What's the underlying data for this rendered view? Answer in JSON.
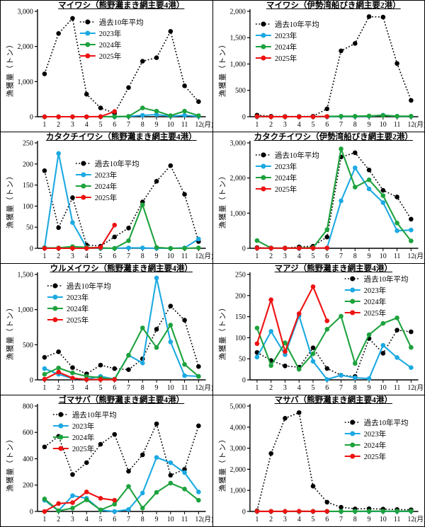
{
  "page": {
    "background": "#ffffff",
    "grid_border_color": "#000000"
  },
  "axis": {
    "ylabel": "漁獲量（トン）",
    "x_months": [
      1,
      2,
      3,
      4,
      5,
      6,
      7,
      8,
      9,
      10,
      11,
      12
    ],
    "x_suffix": "(月)"
  },
  "colors": {
    "avg": "#000000",
    "y2023": "#1CA9E2",
    "y2024": "#1DA23D",
    "y2025": "#EE1111"
  },
  "legend_labels": {
    "avg": "過去10年平均",
    "y2023": "2023年",
    "y2024": "2024年",
    "y2025": "2025年"
  },
  "chart_data": [
    {
      "type": "line",
      "title": "マイワシ（熊野灘まき網主要4港）",
      "ylim": [
        0,
        3000
      ],
      "ytick_values": [
        0,
        1000,
        2000,
        3000
      ],
      "ytick_labels": [
        "0",
        "1,000",
        "2,000",
        "3,000"
      ],
      "legend_pos": {
        "x": 112,
        "y": 30
      },
      "series": [
        {
          "name": "過去10年平均",
          "style": "dotted",
          "color": "#000000",
          "values": [
            1220,
            2370,
            2800,
            640,
            250,
            100,
            830,
            1580,
            1680,
            2430,
            880,
            430
          ]
        },
        {
          "name": "2023年",
          "style": "solid",
          "color": "#1CA9E2",
          "values": [
            0,
            0,
            0,
            0,
            0,
            0,
            10,
            40,
            60,
            15,
            40,
            10
          ]
        },
        {
          "name": "2024年",
          "style": "solid",
          "color": "#1DA23D",
          "values": [
            0,
            0,
            0,
            0,
            0,
            5,
            10,
            250,
            160,
            30,
            160,
            30
          ]
        },
        {
          "name": "2025年",
          "style": "solid",
          "color": "#EE1111",
          "values": [
            0,
            0,
            0,
            0,
            5,
            150
          ]
        }
      ]
    },
    {
      "type": "line",
      "title": "マイワシ（伊勢湾船びき網主要2港）",
      "ylim": [
        0,
        2000
      ],
      "ytick_values": [
        0,
        500,
        1000,
        1500,
        2000
      ],
      "ytick_labels": [
        "0",
        "500",
        "1,000",
        "1,500",
        "2,000"
      ],
      "legend_pos": {
        "x": 60,
        "y": 33
      },
      "series": [
        {
          "name": "過去10年平均",
          "style": "dotted",
          "color": "#000000",
          "values": [
            30,
            10,
            5,
            5,
            10,
            150,
            1250,
            1390,
            1900,
            1890,
            1010,
            310
          ]
        },
        {
          "name": "2023年",
          "style": "solid",
          "color": "#1CA9E2",
          "values": [
            0,
            0,
            0,
            0,
            0,
            0,
            5,
            5,
            10,
            30,
            10,
            5
          ]
        },
        {
          "name": "2024年",
          "style": "solid",
          "color": "#1DA23D",
          "values": [
            5,
            0,
            0,
            0,
            0,
            5,
            10,
            10,
            15,
            25,
            10,
            10
          ]
        },
        {
          "name": "2025年",
          "style": "solid",
          "color": "#EE1111",
          "values": [
            5,
            0,
            0,
            0,
            0,
            5
          ]
        }
      ]
    },
    {
      "type": "line",
      "title": "カタクチイワシ（熊野灘まき網主要4港）",
      "ylim": [
        0,
        250
      ],
      "ytick_values": [
        0,
        50,
        100,
        150,
        200,
        250
      ],
      "ytick_labels": [
        "0",
        "50",
        "100",
        "150",
        "200",
        "250"
      ],
      "legend_pos": {
        "x": 106,
        "y": 44
      },
      "series": [
        {
          "name": "過去10年平均",
          "style": "dotted",
          "color": "#000000",
          "values": [
            184,
            49,
            120,
            8,
            5,
            27,
            48,
            110,
            159,
            196,
            128,
            16
          ]
        },
        {
          "name": "2023年",
          "style": "solid",
          "color": "#1CA9E2",
          "values": [
            2,
            225,
            61,
            2,
            0,
            0,
            1,
            1,
            0,
            0,
            1,
            22
          ]
        },
        {
          "name": "2024年",
          "style": "solid",
          "color": "#1DA23D",
          "values": [
            1,
            1,
            4,
            2,
            1,
            0,
            18,
            103,
            2,
            0,
            0,
            1
          ]
        },
        {
          "name": "2025年",
          "style": "solid",
          "color": "#EE1111",
          "values": [
            0,
            0,
            0,
            0,
            2,
            55
          ]
        }
      ]
    },
    {
      "type": "line",
      "title": "カタクチイワシ（伊勢湾船びき網主要2港）",
      "ylim": [
        0,
        3000
      ],
      "ytick_values": [
        0,
        1000,
        2000,
        3000
      ],
      "ytick_labels": [
        "0",
        "1,000",
        "2,000",
        "3,000"
      ],
      "legend_pos": {
        "x": 60,
        "y": 32
      },
      "series": [
        {
          "name": "過去10年平均",
          "style": "dotted",
          "color": "#000000",
          "values": [
            20,
            10,
            10,
            40,
            60,
            320,
            2600,
            2720,
            2230,
            1650,
            1460,
            830
          ]
        },
        {
          "name": "2023年",
          "style": "solid",
          "color": "#1CA9E2",
          "values": [
            5,
            0,
            0,
            0,
            5,
            10,
            1350,
            2290,
            1690,
            1300,
            500,
            520
          ]
        },
        {
          "name": "2024年",
          "style": "solid",
          "color": "#1DA23D",
          "values": [
            220,
            10,
            5,
            10,
            20,
            530,
            2830,
            1740,
            1950,
            1500,
            720,
            210
          ]
        },
        {
          "name": "2025年",
          "style": "solid",
          "color": "#EE1111",
          "values": [
            5,
            5,
            5,
            5,
            5,
            10
          ]
        }
      ]
    },
    {
      "type": "line",
      "title": "ウルメイワシ（熊野灘まき網主要4港）",
      "ylim": [
        0,
        1500
      ],
      "ytick_values": [
        0,
        500,
        1000,
        1500
      ],
      "ytick_labels": [
        "0",
        "500",
        "1,000",
        "1,500"
      ],
      "legend_pos": {
        "x": 66,
        "y": 31
      },
      "series": [
        {
          "name": "過去10年平均",
          "style": "dotted",
          "color": "#000000",
          "values": [
            320,
            400,
            175,
            85,
            210,
            160,
            145,
            300,
            720,
            1050,
            850,
            190
          ]
        },
        {
          "name": "2023年",
          "style": "solid",
          "color": "#1CA9E2",
          "values": [
            160,
            80,
            20,
            10,
            50,
            10,
            350,
            240,
            1450,
            540,
            60,
            50
          ]
        },
        {
          "name": "2024年",
          "style": "solid",
          "color": "#1DA23D",
          "values": [
            80,
            170,
            100,
            50,
            30,
            10,
            350,
            740,
            460,
            780,
            220,
            50
          ]
        },
        {
          "name": "2025年",
          "style": "solid",
          "color": "#EE1111",
          "values": [
            10,
            110,
            25,
            5,
            5,
            5
          ]
        }
      ]
    },
    {
      "type": "line",
      "title": "マアジ（熊野灘まき網主要4港）",
      "ylim": [
        0,
        250
      ],
      "ytick_values": [
        0,
        50,
        100,
        150,
        200,
        250
      ],
      "ytick_labels": [
        "0",
        "50",
        "100",
        "150",
        "200",
        "250"
      ],
      "legend_pos": {
        "x": 186,
        "y": 21
      },
      "series": [
        {
          "name": "過去10年平均",
          "style": "dotted",
          "color": "#000000",
          "values": [
            65,
            46,
            33,
            30,
            76,
            27,
            11,
            8,
            98,
            63,
            118,
            114
          ]
        },
        {
          "name": "2023年",
          "style": "solid",
          "color": "#1CA9E2",
          "values": [
            54,
            115,
            60,
            152,
            44,
            1,
            11,
            5,
            3,
            82,
            53,
            29
          ]
        },
        {
          "name": "2024年",
          "style": "solid",
          "color": "#1DA23D",
          "values": [
            123,
            34,
            88,
            25,
            62,
            120,
            151,
            39,
            107,
            134,
            147,
            77
          ]
        },
        {
          "name": "2025年",
          "style": "solid",
          "color": "#EE1111",
          "values": [
            86,
            190,
            67,
            157,
            221,
            140
          ]
        }
      ]
    },
    {
      "type": "line",
      "title": "ゴマサバ（熊野灘まき網主要4港）",
      "ylim": [
        0,
        800
      ],
      "ytick_values": [
        0,
        200,
        400,
        600,
        800
      ],
      "ytick_labels": [
        "0",
        "200",
        "400",
        "600",
        "800"
      ],
      "legend_pos": {
        "x": 74,
        "y": 27
      },
      "series": [
        {
          "name": "過去10年平均",
          "style": "dotted",
          "color": "#000000",
          "values": [
            490,
            570,
            280,
            370,
            510,
            585,
            305,
            430,
            665,
            275,
            320,
            650
          ]
        },
        {
          "name": "2023年",
          "style": "solid",
          "color": "#1CA9E2",
          "values": [
            85,
            5,
            120,
            100,
            10,
            0,
            15,
            140,
            410,
            370,
            295,
            148
          ]
        },
        {
          "name": "2024年",
          "style": "solid",
          "color": "#1DA23D",
          "values": [
            95,
            5,
            25,
            88,
            12,
            55,
            190,
            25,
            145,
            215,
            170,
            85
          ]
        },
        {
          "name": "2025年",
          "style": "solid",
          "color": "#EE1111",
          "values": [
            0,
            60,
            67,
            148,
            100,
            85
          ]
        }
      ]
    },
    {
      "type": "line",
      "title": "マサバ（熊野灘まき網主要4港）",
      "ylim": [
        0,
        5000
      ],
      "ytick_values": [
        0,
        1000,
        2000,
        3000,
        4000,
        5000
      ],
      "ytick_labels": [
        "0",
        "1,000",
        "2,000",
        "3,000",
        "4,000",
        "5,000"
      ],
      "legend_pos": {
        "x": 186,
        "y": 38
      },
      "series": [
        {
          "name": "過去10年平均",
          "style": "dotted",
          "color": "#000000",
          "values": [
            30,
            2750,
            4420,
            4690,
            1200,
            440,
            200,
            120,
            130,
            110,
            90,
            80
          ]
        },
        {
          "name": "2023年",
          "style": "solid",
          "color": "#1CA9E2",
          "values": [
            0,
            0,
            0,
            0,
            0,
            0,
            0,
            5,
            5,
            5,
            5,
            5
          ]
        },
        {
          "name": "2024年",
          "style": "solid",
          "color": "#1DA23D",
          "values": [
            5,
            5,
            5,
            5,
            5,
            5,
            5,
            5,
            10,
            10,
            10,
            15
          ]
        },
        {
          "name": "2025年",
          "style": "solid",
          "color": "#EE1111",
          "values": [
            5,
            5,
            5,
            10,
            5,
            5
          ]
        }
      ]
    }
  ]
}
